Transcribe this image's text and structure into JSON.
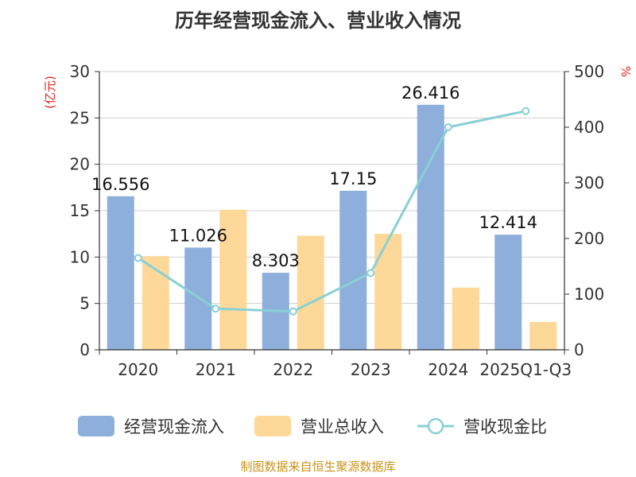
{
  "chart_data": {
    "type": "bar",
    "title": "历年经营现金流入、营业收入情况",
    "categories": [
      "2020",
      "2021",
      "2022",
      "2023",
      "2024",
      "2025Q1-Q3"
    ],
    "series": [
      {
        "name": "经营现金流入",
        "kind": "bar",
        "axis": "left",
        "color": "#8eaedb",
        "values": [
          16.556,
          11.026,
          8.303,
          17.15,
          26.416,
          12.414
        ],
        "labels": [
          "16.556",
          "11.026",
          "8.303",
          "17.15",
          "26.416",
          "12.414"
        ]
      },
      {
        "name": "营业总收入",
        "kind": "bar",
        "axis": "left",
        "color": "#fdd898",
        "values": [
          10.1,
          15.1,
          12.3,
          12.5,
          6.7,
          3.0
        ]
      },
      {
        "name": "营收现金比",
        "kind": "line",
        "axis": "right",
        "color": "#88d0d4",
        "values": [
          165,
          74,
          69,
          138,
          400,
          429
        ]
      }
    ],
    "left_axis": {
      "unit": "(亿元)",
      "min": 0,
      "max": 30,
      "ticks": [
        "0",
        "5",
        "10",
        "15",
        "20",
        "25",
        "30"
      ]
    },
    "right_axis": {
      "unit": "%",
      "min": 0,
      "max": 500,
      "ticks": [
        "0",
        "100",
        "200",
        "300",
        "400",
        "500"
      ]
    },
    "grid": true,
    "legend_position": "bottom"
  },
  "source": "制图数据来自恒生聚源数据库"
}
